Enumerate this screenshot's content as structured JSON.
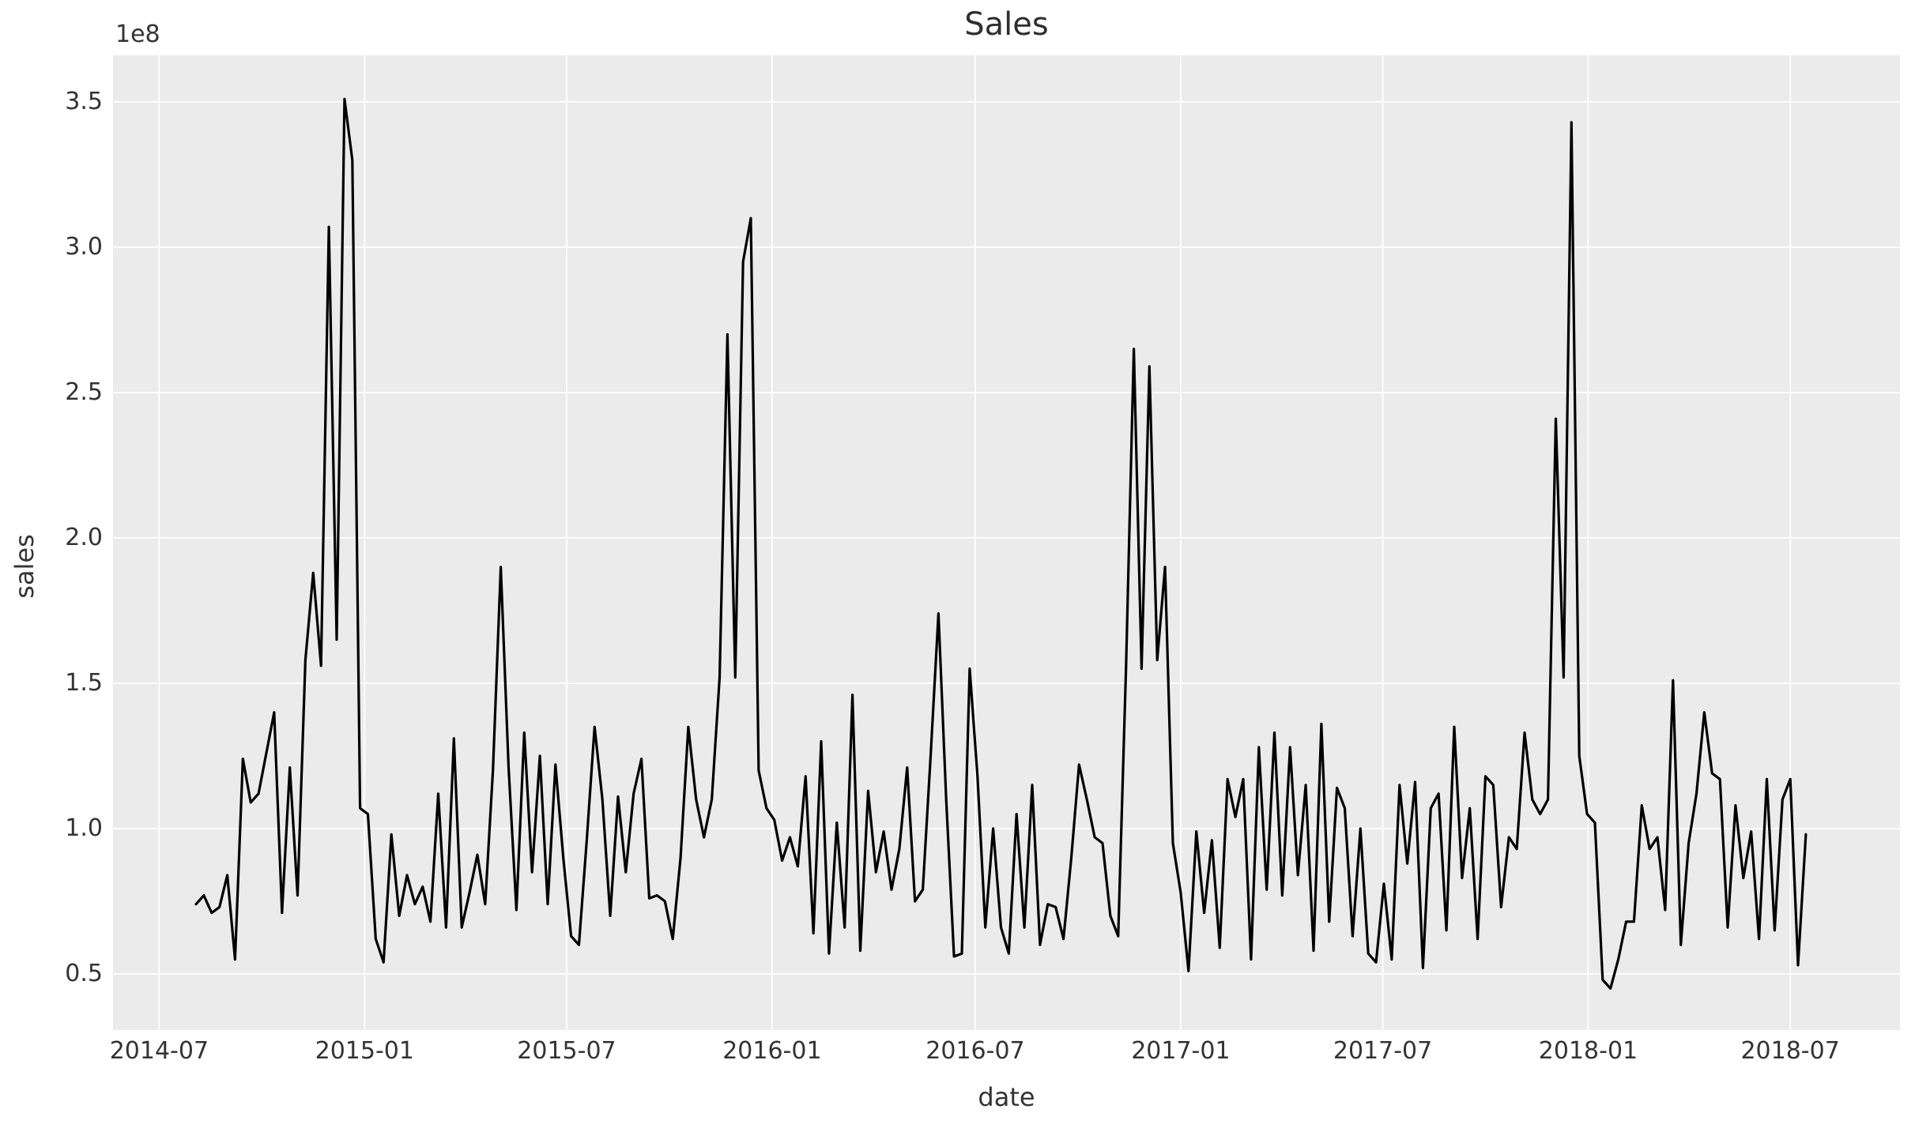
{
  "figure": {
    "title": "Sales",
    "xlabel": "date",
    "ylabel": "sales",
    "offset_text": "1e8",
    "colors": {
      "figure_background": "#ffffff",
      "plot_background": "#ebebeb",
      "gridline": "#ffffff",
      "line": "#000000",
      "text": "#333333"
    }
  },
  "chart_data": {
    "type": "line",
    "title": "Sales",
    "xlabel": "date",
    "ylabel": "sales",
    "y_unit_multiplier": "1e8",
    "grid": true,
    "legend": false,
    "x_tick_labels": [
      "2014-07",
      "2015-01",
      "2015-07",
      "2016-01",
      "2016-07",
      "2017-01",
      "2017-07",
      "2018-01",
      "2018-07"
    ],
    "y_tick_labels": [
      "3.5",
      "3.0",
      "2.5",
      "2.0",
      "1.5",
      "1.0",
      "0.5"
    ],
    "ylim_1e8": [
      0.33,
      3.66
    ],
    "xlim": [
      "2014-05-21",
      "2018-10-06"
    ],
    "frequency": "weekly",
    "series": [
      {
        "name": "sales",
        "start_date": "2014-08-03",
        "step_days": 7,
        "dates": [
          "2014-08-03",
          "2014-08-10",
          "2014-08-17",
          "2014-08-24",
          "2014-08-31",
          "2014-09-07",
          "2014-09-14",
          "2014-09-21",
          "2014-09-28",
          "2014-10-05",
          "2014-10-12",
          "2014-10-19",
          "2014-10-26",
          "2014-11-02",
          "2014-11-09",
          "2014-11-16",
          "2014-11-23",
          "2014-11-30",
          "2014-12-07",
          "2014-12-14",
          "2014-12-21",
          "2014-12-28",
          "2015-01-04",
          "2015-01-11",
          "2015-01-18",
          "2015-01-25",
          "2015-02-01",
          "2015-02-08",
          "2015-02-15",
          "2015-02-22",
          "2015-03-01",
          "2015-03-08",
          "2015-03-15",
          "2015-03-22",
          "2015-03-29",
          "2015-04-05",
          "2015-04-12",
          "2015-04-19",
          "2015-04-26",
          "2015-05-03",
          "2015-05-10",
          "2015-05-17",
          "2015-05-24",
          "2015-05-31",
          "2015-06-07",
          "2015-06-14",
          "2015-06-21",
          "2015-06-28",
          "2015-07-05",
          "2015-07-12",
          "2015-07-19",
          "2015-07-26",
          "2015-08-02",
          "2015-08-09",
          "2015-08-16",
          "2015-08-23",
          "2015-08-30",
          "2015-09-06",
          "2015-09-13",
          "2015-09-20",
          "2015-09-27",
          "2015-10-04",
          "2015-10-11",
          "2015-10-18",
          "2015-10-25",
          "2015-11-01",
          "2015-11-08",
          "2015-11-15",
          "2015-11-22",
          "2015-11-29",
          "2015-12-06",
          "2015-12-13",
          "2015-12-20",
          "2015-12-27",
          "2016-01-03",
          "2016-01-10",
          "2016-01-17",
          "2016-01-24",
          "2016-01-31",
          "2016-02-07",
          "2016-02-14",
          "2016-02-21",
          "2016-02-28",
          "2016-03-06",
          "2016-03-13",
          "2016-03-20",
          "2016-03-27",
          "2016-04-03",
          "2016-04-10",
          "2016-04-17",
          "2016-04-24",
          "2016-05-01",
          "2016-05-08",
          "2016-05-15",
          "2016-05-22",
          "2016-05-29",
          "2016-06-05",
          "2016-06-12",
          "2016-06-19",
          "2016-06-26",
          "2016-07-03",
          "2016-07-10",
          "2016-07-17",
          "2016-07-24",
          "2016-07-31",
          "2016-08-07",
          "2016-08-14",
          "2016-08-21",
          "2016-08-28",
          "2016-09-04",
          "2016-09-11",
          "2016-09-18",
          "2016-09-25",
          "2016-10-02",
          "2016-10-09",
          "2016-10-16",
          "2016-10-23",
          "2016-10-30",
          "2016-11-06",
          "2016-11-13",
          "2016-11-20",
          "2016-11-27",
          "2016-12-04",
          "2016-12-11",
          "2016-12-18",
          "2016-12-25",
          "2017-01-01",
          "2017-01-08",
          "2017-01-15",
          "2017-01-22",
          "2017-01-29",
          "2017-02-05",
          "2017-02-12",
          "2017-02-19",
          "2017-02-26",
          "2017-03-05",
          "2017-03-12",
          "2017-03-19",
          "2017-03-26",
          "2017-04-02",
          "2017-04-09",
          "2017-04-16",
          "2017-04-23",
          "2017-04-30",
          "2017-05-07",
          "2017-05-14",
          "2017-05-21",
          "2017-05-28",
          "2017-06-04",
          "2017-06-11",
          "2017-06-18",
          "2017-06-25",
          "2017-07-02",
          "2017-07-09",
          "2017-07-16",
          "2017-07-23",
          "2017-07-30",
          "2017-08-06",
          "2017-08-13",
          "2017-08-20",
          "2017-08-27",
          "2017-09-03",
          "2017-09-10",
          "2017-09-17",
          "2017-09-24",
          "2017-10-01",
          "2017-10-08",
          "2017-10-15",
          "2017-10-22",
          "2017-10-29",
          "2017-11-05",
          "2017-11-12",
          "2017-11-19",
          "2017-11-26",
          "2017-12-03",
          "2017-12-10",
          "2017-12-17",
          "2017-12-24",
          "2017-12-31",
          "2018-01-07",
          "2018-01-14",
          "2018-01-21",
          "2018-01-28",
          "2018-02-04",
          "2018-02-11",
          "2018-02-18",
          "2018-02-25",
          "2018-03-04",
          "2018-03-11",
          "2018-03-18",
          "2018-03-25",
          "2018-04-01",
          "2018-04-08",
          "2018-04-15",
          "2018-04-22",
          "2018-04-29",
          "2018-05-06",
          "2018-05-13",
          "2018-05-20",
          "2018-05-27",
          "2018-06-03",
          "2018-06-10",
          "2018-06-17",
          "2018-06-24",
          "2018-07-01",
          "2018-07-08",
          "2018-07-15"
        ],
        "values_1e8": [
          0.74,
          0.77,
          0.71,
          0.73,
          0.84,
          0.55,
          1.24,
          1.09,
          1.12,
          1.26,
          1.4,
          0.71,
          1.21,
          0.77,
          1.58,
          1.88,
          1.56,
          3.07,
          1.65,
          3.51,
          3.3,
          1.07,
          1.05,
          0.62,
          0.54,
          0.98,
          0.7,
          0.84,
          0.74,
          0.8,
          0.68,
          1.12,
          0.66,
          1.31,
          0.66,
          0.78,
          0.91,
          0.74,
          1.2,
          1.9,
          1.21,
          0.72,
          1.33,
          0.85,
          1.25,
          0.74,
          1.22,
          0.9,
          0.63,
          0.6,
          0.96,
          1.35,
          1.1,
          0.7,
          1.11,
          0.85,
          1.12,
          1.24,
          0.76,
          0.77,
          0.75,
          0.62,
          0.9,
          1.35,
          1.1,
          0.97,
          1.1,
          1.52,
          2.7,
          1.52,
          2.95,
          3.1,
          1.2,
          1.07,
          1.03,
          0.89,
          0.97,
          0.87,
          1.18,
          0.64,
          1.3,
          0.57,
          1.02,
          0.66,
          1.46,
          0.58,
          1.13,
          0.85,
          0.99,
          0.79,
          0.93,
          1.21,
          0.75,
          0.79,
          1.25,
          1.74,
          1.1,
          0.56,
          0.57,
          1.55,
          1.18,
          0.66,
          1.0,
          0.66,
          0.57,
          1.05,
          0.66,
          1.15,
          0.6,
          0.74,
          0.73,
          0.62,
          0.9,
          1.22,
          1.1,
          0.97,
          0.95,
          0.7,
          0.63,
          1.55,
          2.65,
          1.55,
          2.59,
          1.58,
          1.9,
          0.95,
          0.78,
          0.51,
          0.99,
          0.71,
          0.96,
          0.59,
          1.17,
          1.04,
          1.17,
          0.55,
          1.28,
          0.79,
          1.33,
          0.77,
          1.28,
          0.84,
          1.15,
          0.58,
          1.36,
          0.68,
          1.14,
          1.07,
          0.63,
          1.0,
          0.57,
          0.54,
          0.81,
          0.55,
          1.15,
          0.88,
          1.16,
          0.52,
          1.07,
          1.12,
          0.65,
          1.35,
          0.83,
          1.07,
          0.62,
          1.18,
          1.15,
          0.73,
          0.97,
          0.93,
          1.33,
          1.1,
          1.05,
          1.1,
          2.41,
          1.52,
          3.43,
          1.25,
          1.05,
          1.02,
          0.48,
          0.45,
          0.55,
          0.68,
          0.68,
          1.08,
          0.93,
          0.97,
          0.72,
          1.51,
          0.6,
          0.95,
          1.12,
          1.4,
          1.19,
          1.17,
          0.66,
          1.08,
          0.83,
          0.99,
          0.62,
          1.17,
          0.65,
          1.1,
          1.17,
          0.53,
          0.98
        ]
      }
    ]
  }
}
